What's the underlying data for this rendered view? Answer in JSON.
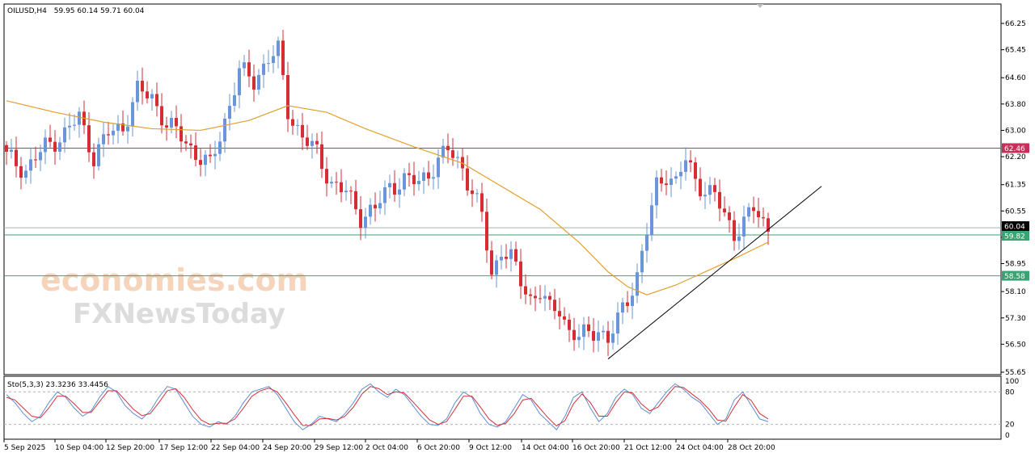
{
  "header": {
    "symbol": "OILUSD,H4",
    "ohlc": "59.95 60.14 59.71 60.04"
  },
  "indicator": {
    "label": "Sto(5,3,3) 23.3236 33.4456",
    "levels": [
      20,
      80
    ],
    "axis_labels": [
      "100",
      "80",
      "20",
      "0"
    ]
  },
  "watermark": {
    "line1": "economies.com",
    "line2": "FXNewsToday"
  },
  "colors": {
    "bull": "#6a95d8",
    "bear": "#d62d35",
    "ma": "#e0a030",
    "resistance": "#c8305a",
    "support": "#3aa373",
    "trendline": "#000000",
    "sto_main": "#5c8fd6",
    "sto_signal": "#d6303a"
  },
  "chart_data": {
    "type": "candlestick",
    "y_axis_ticks": [
      "66.25",
      "65.45",
      "64.60",
      "63.80",
      "63.00",
      "62.20",
      "61.35",
      "60.55",
      "59.75",
      "58.95",
      "58.10",
      "57.30",
      "56.50",
      "55.65"
    ],
    "ylim": [
      55.65,
      66.25
    ],
    "x_axis_ticks": [
      "5 Sep 2025",
      "10 Sep 04:00",
      "12 Sep 20:00",
      "17 Sep 12:00",
      "22 Sep 04:00",
      "24 Sep 20:00",
      "29 Sep 12:00",
      "2 Oct 04:00",
      "6 Oct 20:00",
      "9 Oct 12:00",
      "14 Oct 04:00",
      "16 Oct 20:00",
      "21 Oct 12:00",
      "24 Oct 04:00",
      "28 Oct 20:00"
    ],
    "price_levels": [
      {
        "value": 62.46,
        "label": "62.46",
        "role": "resistance"
      },
      {
        "value": 60.04,
        "label": "60.04",
        "role": "current"
      },
      {
        "value": 59.82,
        "label": "59.82",
        "role": "support"
      },
      {
        "value": 58.58,
        "label": "58.58",
        "role": "support"
      }
    ],
    "close_path": [
      [
        0,
        62.2
      ],
      [
        4,
        61.8
      ],
      [
        8,
        62.5
      ],
      [
        12,
        62.9
      ],
      [
        15,
        63.4
      ],
      [
        18,
        62.2
      ],
      [
        21,
        62.9
      ],
      [
        24,
        63.1
      ],
      [
        27,
        64.2
      ],
      [
        30,
        64.0
      ],
      [
        33,
        63.2
      ],
      [
        36,
        62.8
      ],
      [
        39,
        62.3
      ],
      [
        42,
        61.9
      ],
      [
        45,
        63.3
      ],
      [
        48,
        64.8
      ],
      [
        51,
        64.5
      ],
      [
        54,
        65.2
      ],
      [
        56,
        65.4
      ],
      [
        58,
        63.6
      ],
      [
        61,
        62.8
      ],
      [
        64,
        62.3
      ],
      [
        67,
        61.4
      ],
      [
        70,
        61.1
      ],
      [
        73,
        60.4
      ],
      [
        76,
        60.6
      ],
      [
        79,
        61.3
      ],
      [
        82,
        61.5
      ],
      [
        85,
        61.4
      ],
      [
        88,
        61.9
      ],
      [
        91,
        62.4
      ],
      [
        94,
        61.9
      ],
      [
        96,
        61.1
      ],
      [
        98,
        60.4
      ],
      [
        100,
        58.6
      ],
      [
        102,
        59.4
      ],
      [
        104,
        59.1
      ],
      [
        106,
        58.4
      ],
      [
        108,
        57.9
      ],
      [
        110,
        58.1
      ],
      [
        112,
        57.5
      ],
      [
        114,
        57.6
      ],
      [
        116,
        56.9
      ],
      [
        118,
        56.7
      ],
      [
        120,
        56.8
      ],
      [
        122,
        57.0
      ],
      [
        124,
        56.6
      ],
      [
        126,
        57.2
      ],
      [
        128,
        57.9
      ],
      [
        130,
        58.6
      ],
      [
        132,
        59.9
      ],
      [
        134,
        61.3
      ],
      [
        136,
        61.7
      ],
      [
        138,
        61.4
      ],
      [
        140,
        62.1
      ],
      [
        142,
        61.5
      ],
      [
        144,
        61.2
      ],
      [
        146,
        61.0
      ],
      [
        148,
        60.4
      ],
      [
        150,
        59.9
      ],
      [
        152,
        60.2
      ],
      [
        154,
        60.6
      ],
      [
        156,
        60.2
      ],
      [
        157,
        60.04
      ]
    ],
    "moving_average": [
      [
        0,
        63.9
      ],
      [
        10,
        63.55
      ],
      [
        20,
        63.25
      ],
      [
        30,
        63.05
      ],
      [
        40,
        63.0
      ],
      [
        50,
        63.3
      ],
      [
        58,
        63.75
      ],
      [
        66,
        63.55
      ],
      [
        74,
        63.05
      ],
      [
        84,
        62.5
      ],
      [
        94,
        62.0
      ],
      [
        102,
        61.3
      ],
      [
        110,
        60.6
      ],
      [
        118,
        59.6
      ],
      [
        124,
        58.7
      ],
      [
        128,
        58.25
      ],
      [
        132,
        58.0
      ],
      [
        138,
        58.3
      ],
      [
        144,
        58.7
      ],
      [
        150,
        59.1
      ],
      [
        157,
        59.6
      ]
    ],
    "trendline": [
      [
        124,
        56.05
      ],
      [
        168,
        61.3
      ]
    ],
    "stochastic_main": [
      75,
      60,
      40,
      25,
      35,
      60,
      80,
      70,
      50,
      35,
      45,
      70,
      90,
      80,
      55,
      40,
      30,
      45,
      70,
      90,
      85,
      60,
      35,
      20,
      15,
      25,
      20,
      35,
      60,
      80,
      85,
      90,
      75,
      50,
      25,
      10,
      20,
      35,
      30,
      25,
      40,
      60,
      85,
      95,
      80,
      70,
      85,
      75,
      55,
      35,
      20,
      18,
      30,
      60,
      80,
      70,
      40,
      20,
      15,
      25,
      50,
      75,
      65,
      40,
      25,
      10,
      35,
      70,
      80,
      50,
      25,
      40,
      70,
      85,
      75,
      50,
      40,
      60,
      80,
      95,
      85,
      70,
      60,
      40,
      20,
      30,
      65,
      80,
      55,
      30,
      25
    ],
    "stochastic_signal": [
      70,
      65,
      50,
      35,
      32,
      50,
      72,
      72,
      58,
      42,
      42,
      62,
      82,
      82,
      65,
      48,
      36,
      40,
      60,
      82,
      86,
      70,
      47,
      28,
      20,
      22,
      22,
      30,
      50,
      72,
      82,
      87,
      80,
      60,
      38,
      18,
      18,
      30,
      31,
      28,
      35,
      52,
      76,
      90,
      86,
      75,
      80,
      78,
      62,
      45,
      28,
      20,
      25,
      48,
      72,
      72,
      52,
      30,
      18,
      22,
      40,
      65,
      68,
      50,
      32,
      17,
      27,
      58,
      76,
      60,
      35,
      35,
      60,
      80,
      78,
      58,
      45,
      52,
      72,
      90,
      88,
      76,
      64,
      48,
      28,
      26,
      52,
      75,
      64,
      40,
      30
    ]
  }
}
